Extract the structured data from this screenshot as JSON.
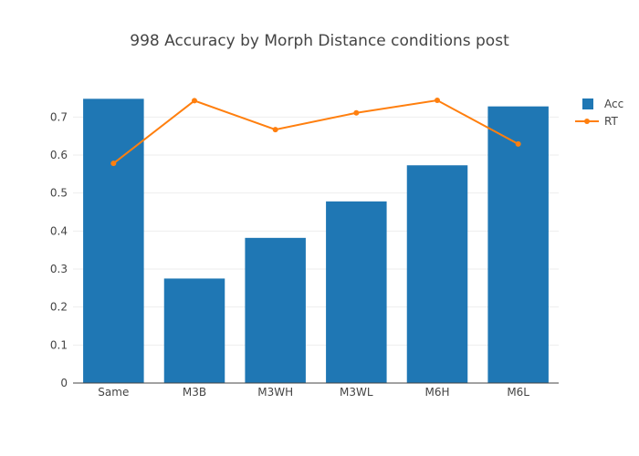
{
  "chart_data": {
    "type": "bar",
    "title": "998 Accuracy by Morph Distance conditions post",
    "categories": [
      "Same",
      "M3B",
      "M3WH",
      "M3WL",
      "M6H",
      "M6L"
    ],
    "series": [
      {
        "name": "Acc",
        "type": "bar",
        "color": "#1f77b4",
        "values": [
          0.748,
          0.275,
          0.382,
          0.478,
          0.573,
          0.728
        ]
      },
      {
        "name": "RT",
        "type": "line",
        "color": "#ff7f0e",
        "values": [
          0.578,
          0.743,
          0.667,
          0.711,
          0.744,
          0.629
        ]
      }
    ],
    "yticks": [
      "0",
      "0.1",
      "0.2",
      "0.3",
      "0.4",
      "0.5",
      "0.6",
      "0.7"
    ],
    "ylim": [
      0,
      0.78
    ],
    "xlabel": "",
    "ylabel": "",
    "grid": true,
    "legend_position": "top-right"
  }
}
